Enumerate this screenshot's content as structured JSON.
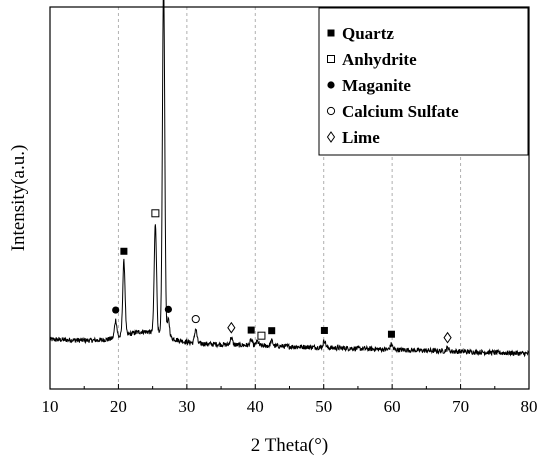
{
  "chart_data": {
    "type": "line",
    "xlabel": "2 Theta(°)",
    "ylabel": "Intensity(a.u.)",
    "xlim": [
      10,
      80
    ],
    "x_ticks": [
      10,
      20,
      30,
      40,
      50,
      60,
      70,
      80
    ],
    "y_ticks_shown": false,
    "grid": "vertical dashed lines at x ticks",
    "legend_position": "top-right",
    "colors": {
      "line": "#000000",
      "grid": "#b0b0b0",
      "frame": "#000000"
    },
    "series": [
      {
        "peaks": [
          {
            "x": 19.6,
            "h": 0.05
          },
          {
            "x": 20.8,
            "h": 0.21
          },
          {
            "x": 25.4,
            "h": 0.31
          },
          {
            "x": 26.6,
            "h": 1.0
          },
          {
            "x": 27.3,
            "h": 0.05
          },
          {
            "x": 31.3,
            "h": 0.04
          },
          {
            "x": 36.5,
            "h": 0.02
          },
          {
            "x": 39.4,
            "h": 0.015
          },
          {
            "x": 40.3,
            "h": 0.012
          },
          {
            "x": 42.4,
            "h": 0.015
          },
          {
            "x": 50.1,
            "h": 0.02
          },
          {
            "x": 59.9,
            "h": 0.015
          },
          {
            "x": 68.1,
            "h": 0.01
          }
        ],
        "baseline": {
          "start": 0.14,
          "end": 0.1,
          "hump_center": 24,
          "hump_height": 0.03
        }
      }
    ],
    "markers": [
      {
        "x": 26.6,
        "symbol": "filled-square",
        "phase": "Quartz"
      },
      {
        "x": 20.8,
        "symbol": "filled-square",
        "phase": "Quartz"
      },
      {
        "x": 25.4,
        "symbol": "open-square",
        "phase": "Anhydrite"
      },
      {
        "x": 19.6,
        "symbol": "filled-circle",
        "phase": "Maganite"
      },
      {
        "x": 27.3,
        "symbol": "filled-circle",
        "phase": "Maganite"
      },
      {
        "x": 31.3,
        "symbol": "open-circle",
        "phase": "Calcium Sulfate"
      },
      {
        "x": 36.5,
        "symbol": "open-diamond",
        "phase": "Lime"
      },
      {
        "x": 39.4,
        "symbol": "filled-square",
        "phase": "Quartz"
      },
      {
        "x": 40.9,
        "symbol": "open-square",
        "phase": "Anhydrite"
      },
      {
        "x": 42.4,
        "symbol": "filled-square",
        "phase": "Quartz"
      },
      {
        "x": 50.1,
        "symbol": "filled-square",
        "phase": "Quartz"
      },
      {
        "x": 59.9,
        "symbol": "filled-square",
        "phase": "Quartz"
      },
      {
        "x": 68.1,
        "symbol": "open-diamond",
        "phase": "Lime"
      }
    ],
    "legend": [
      {
        "symbol": "filled-square",
        "label": "Quartz"
      },
      {
        "symbol": "open-square",
        "label": "Anhydrite"
      },
      {
        "symbol": "filled-circle",
        "label": "Maganite"
      },
      {
        "symbol": "open-circle",
        "label": "Calcium Sulfate"
      },
      {
        "symbol": "open-diamond",
        "label": "Lime"
      }
    ]
  }
}
